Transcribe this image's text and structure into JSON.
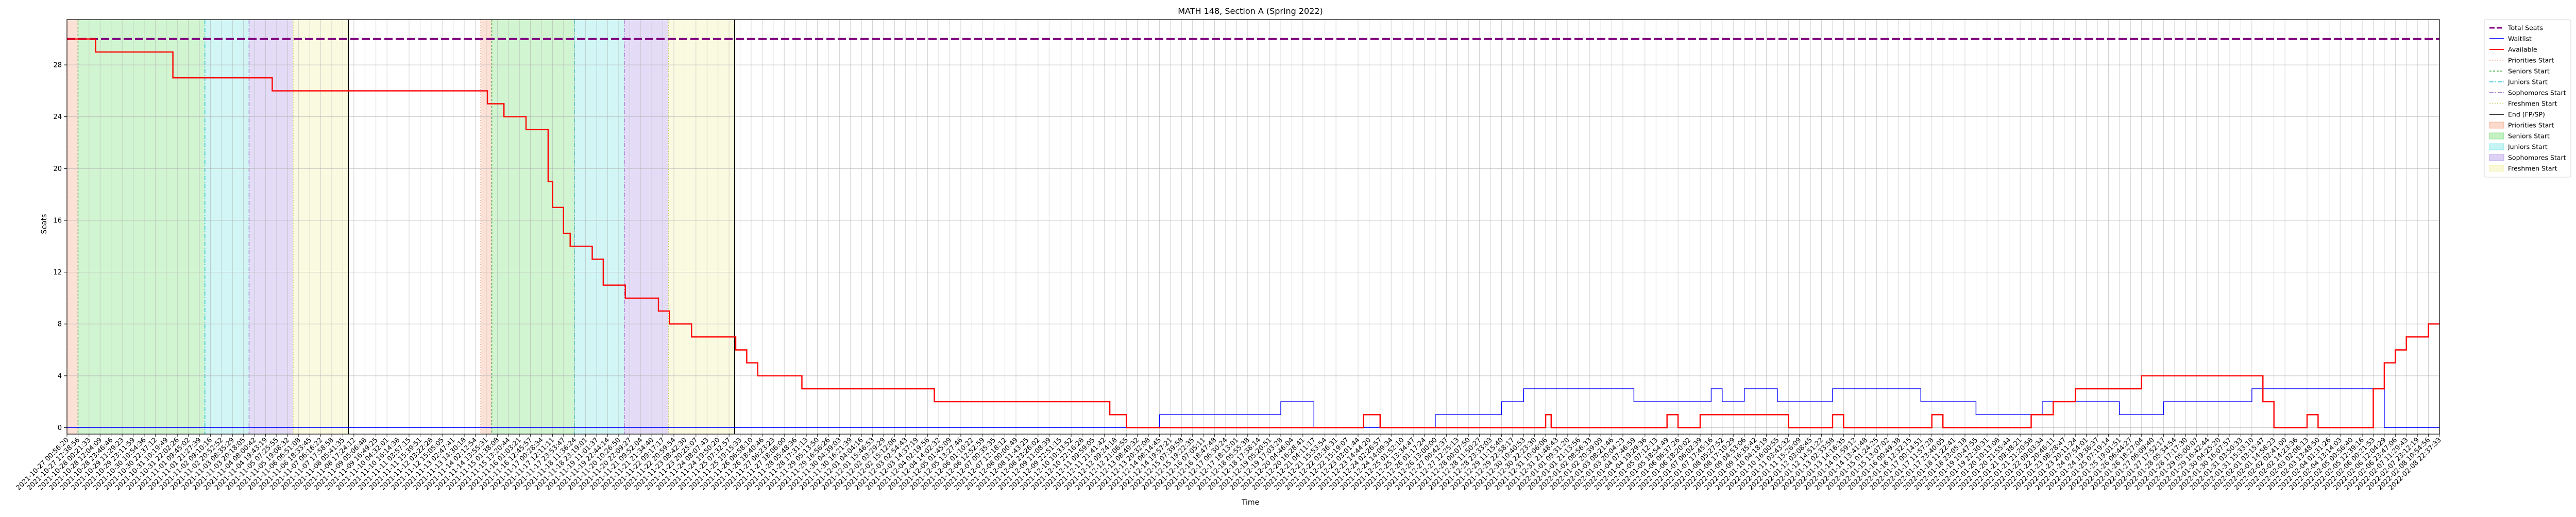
{
  "chart_data": {
    "type": "line",
    "title": "MATH 148, Section A (Spring 2022)",
    "xlabel": "Time",
    "ylabel": "Seats",
    "ylim": [
      -0.5,
      31.5
    ],
    "yticks": [
      0,
      4,
      8,
      12,
      16,
      20,
      24,
      28
    ],
    "grid": true,
    "legend_placement": "outside-top-right",
    "x_tick_count": 216,
    "x_tick_labels": {
      "first": "2021-10-27 00:56:20",
      "last": "2022-02-08 22:37:33"
    },
    "colors": {
      "total": "#800080",
      "waitlist": "#0000ff",
      "available": "#ff0000",
      "priorities": "#f5a88a",
      "seniors": "#7be07b",
      "juniors": "#7ee6e6",
      "sophomores": "#b39ae8",
      "freshmen": "#f2f2a8",
      "end": "#000000"
    },
    "series": [
      {
        "name": "Total Seats",
        "x": [
          0,
          215
        ],
        "y": [
          30,
          30
        ]
      },
      {
        "name": "Waitlist",
        "x": [
          0,
          97,
          99,
          100,
          110,
          112,
          113,
          122,
          124,
          125,
          130,
          131,
          132,
          138,
          142,
          143,
          149,
          150,
          151,
          152,
          153,
          155,
          159,
          160,
          162,
          168,
          169,
          173,
          174,
          179,
          180,
          186,
          187,
          190,
          196,
          198,
          209,
          210,
          215
        ],
        "y": [
          0,
          0,
          1,
          1,
          2,
          2,
          0,
          0,
          1,
          1,
          2,
          2,
          3,
          3,
          2,
          2,
          3,
          2,
          2,
          3,
          3,
          2,
          2,
          3,
          3,
          2,
          2,
          1,
          1,
          2,
          2,
          1,
          1,
          2,
          2,
          3,
          3,
          0,
          0
        ]
      },
      {
        "name": "Available",
        "x": [
          0,
          2.5,
          2.6,
          9.5,
          9.6,
          18.5,
          18.6,
          38.0,
          38.1,
          39.5,
          39.6,
          41.5,
          41.6,
          43.5,
          43.6,
          44.0,
          44.5,
          45.0,
          45.6,
          47.5,
          47.6,
          48.5,
          48.6,
          50.5,
          50.6,
          53.5,
          53.6,
          54.5,
          54.6,
          56.5,
          56.6,
          60.5,
          60.6,
          61.5,
          61.6,
          62.5,
          62.6,
          66.5,
          66.6,
          78.5,
          78.6,
          94.0,
          94.5,
          96.0,
          117.0,
          117.5,
          119.0,
          133.0,
          134.0,
          134.5,
          144.0,
          145.0,
          146.0,
          147.0,
          148.0,
          155.0,
          156.0,
          159.0,
          160.0,
          161.0,
          168.0,
          169.0,
          170.0,
          171.0,
          178.0,
          179.0,
          180.0,
          181.0,
          182.0,
          187.0,
          188.0,
          198.0,
          199.0,
          200.0,
          202.0,
          203.0,
          204.0,
          208.0,
          209.0,
          210.0,
          211.0,
          212.0,
          213.0,
          214.0,
          215.0
        ],
        "y": [
          30,
          30,
          29,
          29,
          27,
          27,
          26,
          26,
          25,
          25,
          24,
          24,
          23,
          23,
          19,
          17,
          17,
          15,
          14,
          14,
          13,
          13,
          11,
          11,
          10,
          10,
          9,
          9,
          8,
          8,
          7,
          7,
          6,
          6,
          5,
          5,
          4,
          4,
          3,
          3,
          2,
          2,
          1,
          0,
          0,
          1,
          0,
          0,
          1,
          0,
          0,
          1,
          0,
          0,
          1,
          1,
          0,
          0,
          1,
          0,
          0,
          1,
          0,
          0,
          1,
          1,
          2,
          2,
          3,
          3,
          4,
          4,
          2,
          0,
          0,
          1,
          0,
          0,
          3,
          5,
          6,
          7,
          7,
          8,
          8
        ]
      }
    ],
    "phases": [
      {
        "name": "Priorities Start",
        "start": 0.0,
        "end": 1.0,
        "color": "#f5a88a"
      },
      {
        "name": "Seniors Start",
        "start": 1.0,
        "end": 12.5,
        "color": "#7be07b"
      },
      {
        "name": "Juniors Start",
        "start": 12.5,
        "end": 16.5,
        "color": "#7ee6e6"
      },
      {
        "name": "Sophomores Start",
        "start": 16.5,
        "end": 20.5,
        "color": "#b39ae8"
      },
      {
        "name": "Freshmen Start",
        "start": 20.5,
        "end": 25.5,
        "color": "#f2f2a8"
      },
      {
        "name": "Priorities Start",
        "start": 37.5,
        "end": 38.5,
        "color": "#f5a88a"
      },
      {
        "name": "Seniors Start",
        "start": 38.5,
        "end": 46.0,
        "color": "#7be07b"
      },
      {
        "name": "Juniors Start",
        "start": 46.0,
        "end": 50.5,
        "color": "#7ee6e6"
      },
      {
        "name": "Sophomores Start",
        "start": 50.5,
        "end": 54.5,
        "color": "#b39ae8"
      },
      {
        "name": "Freshmen Start",
        "start": 54.5,
        "end": 60.5,
        "color": "#f2f2a8"
      }
    ],
    "end_lines": [
      25.5,
      60.5
    ],
    "legend": [
      {
        "label": "Total Seats",
        "kind": "line",
        "color": "#800080",
        "dash": "10,4",
        "width": 3
      },
      {
        "label": "Waitlist",
        "kind": "line",
        "color": "#0000ff",
        "dash": "",
        "width": 1.5
      },
      {
        "label": "Available",
        "kind": "line",
        "color": "#ff0000",
        "dash": "",
        "width": 2
      },
      {
        "label": "Priorities Start",
        "kind": "line",
        "color": "#f5a88a",
        "dash": "2,3",
        "width": 1.5
      },
      {
        "label": "Seniors Start",
        "kind": "line",
        "color": "#2ca02c",
        "dash": "4,3",
        "width": 1.5
      },
      {
        "label": "Juniors Start",
        "kind": "line",
        "color": "#17becf",
        "dash": "8,3,2,3",
        "width": 1.5
      },
      {
        "label": "Sophomores Start",
        "kind": "line",
        "color": "#9467bd",
        "dash": "8,3,2,3",
        "width": 1.5
      },
      {
        "label": "Freshmen Start",
        "kind": "line",
        "color": "#d4d46a",
        "dash": "2,3",
        "width": 1.5
      },
      {
        "label": "End (FP/SP)",
        "kind": "line",
        "color": "#000000",
        "dash": "",
        "width": 1.5
      },
      {
        "label": "Priorities Start",
        "kind": "patch",
        "color": "#f5a88a"
      },
      {
        "label": "Seniors Start",
        "kind": "patch",
        "color": "#7be07b"
      },
      {
        "label": "Juniors Start",
        "kind": "patch",
        "color": "#7ee6e6"
      },
      {
        "label": "Sophomores Start",
        "kind": "patch",
        "color": "#b39ae8"
      },
      {
        "label": "Freshmen Start",
        "kind": "patch",
        "color": "#f2f2a8"
      }
    ]
  }
}
